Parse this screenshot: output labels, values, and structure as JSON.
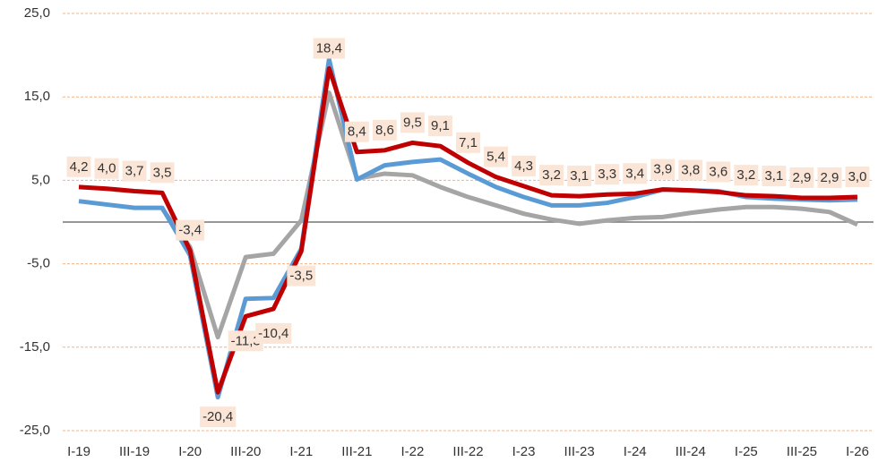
{
  "chart_data": {
    "type": "line",
    "categories": [
      "I-19",
      null,
      "III-19",
      null,
      "I-20",
      null,
      "III-20",
      null,
      "I-21",
      null,
      "III-21",
      null,
      "I-22",
      null,
      "III-22",
      null,
      "I-23",
      null,
      "III-23",
      null,
      "I-24",
      null,
      "III-24",
      null,
      "I-25",
      null,
      "III-25",
      null,
      "I-26"
    ],
    "series": [
      {
        "color": "#a5a5a5",
        "values": [
          null,
          null,
          null,
          1.6,
          -3.0,
          -13.8,
          -4.2,
          -3.8,
          0.2,
          15.5,
          5.2,
          5.8,
          5.6,
          4.2,
          3.0,
          2.0,
          1.0,
          0.3,
          -0.2,
          0.2,
          0.5,
          0.6,
          1.1,
          1.5,
          1.8,
          1.8,
          1.6,
          1.2,
          -0.3
        ]
      },
      {
        "color": "#5b9bd5",
        "values": [
          2.5,
          2.1,
          1.7,
          1.7,
          -4.0,
          -21.0,
          -9.2,
          -9.1,
          -3.2,
          19.5,
          5.1,
          6.8,
          7.2,
          7.5,
          5.8,
          4.2,
          3.0,
          2.0,
          2.0,
          2.3,
          3.0,
          3.9,
          3.8,
          3.7,
          3.0,
          2.8,
          2.7,
          2.6,
          2.7
        ]
      },
      {
        "color": "#c00000",
        "values": [
          4.2,
          4.0,
          3.7,
          3.5,
          -3.4,
          -20.4,
          -11.3,
          -10.4,
          -3.5,
          18.4,
          8.4,
          8.6,
          9.5,
          9.1,
          7.1,
          5.4,
          4.3,
          3.2,
          3.1,
          3.3,
          3.4,
          3.9,
          3.8,
          3.6,
          3.2,
          3.1,
          2.9,
          2.9,
          3.0
        ],
        "value_labels": [
          "4,2",
          "4,0",
          "3,7",
          "3,5",
          "-3,4",
          "-20,4",
          "-11,3",
          "-10,4",
          "-3,5",
          "18,4",
          "8,4",
          "8,6",
          "9,5",
          "9,1",
          "7,1",
          "5,4",
          "4,3",
          "3,2",
          "3,1",
          "3,3",
          "3,4",
          "3,9",
          "3,8",
          "3,6",
          "3,2",
          "3,1",
          "2,9",
          "2,9",
          "3,0"
        ]
      }
    ],
    "ylim": [
      -25,
      25
    ],
    "yticks": [
      {
        "value": -25,
        "label": "-25,0"
      },
      {
        "value": -15,
        "label": "-15,0"
      },
      {
        "value": -5,
        "label": "-5,0"
      },
      {
        "value": 5,
        "label": "5,0"
      },
      {
        "value": 15,
        "label": "15,0"
      },
      {
        "value": 25,
        "label": "25,0"
      }
    ],
    "grid": true
  }
}
